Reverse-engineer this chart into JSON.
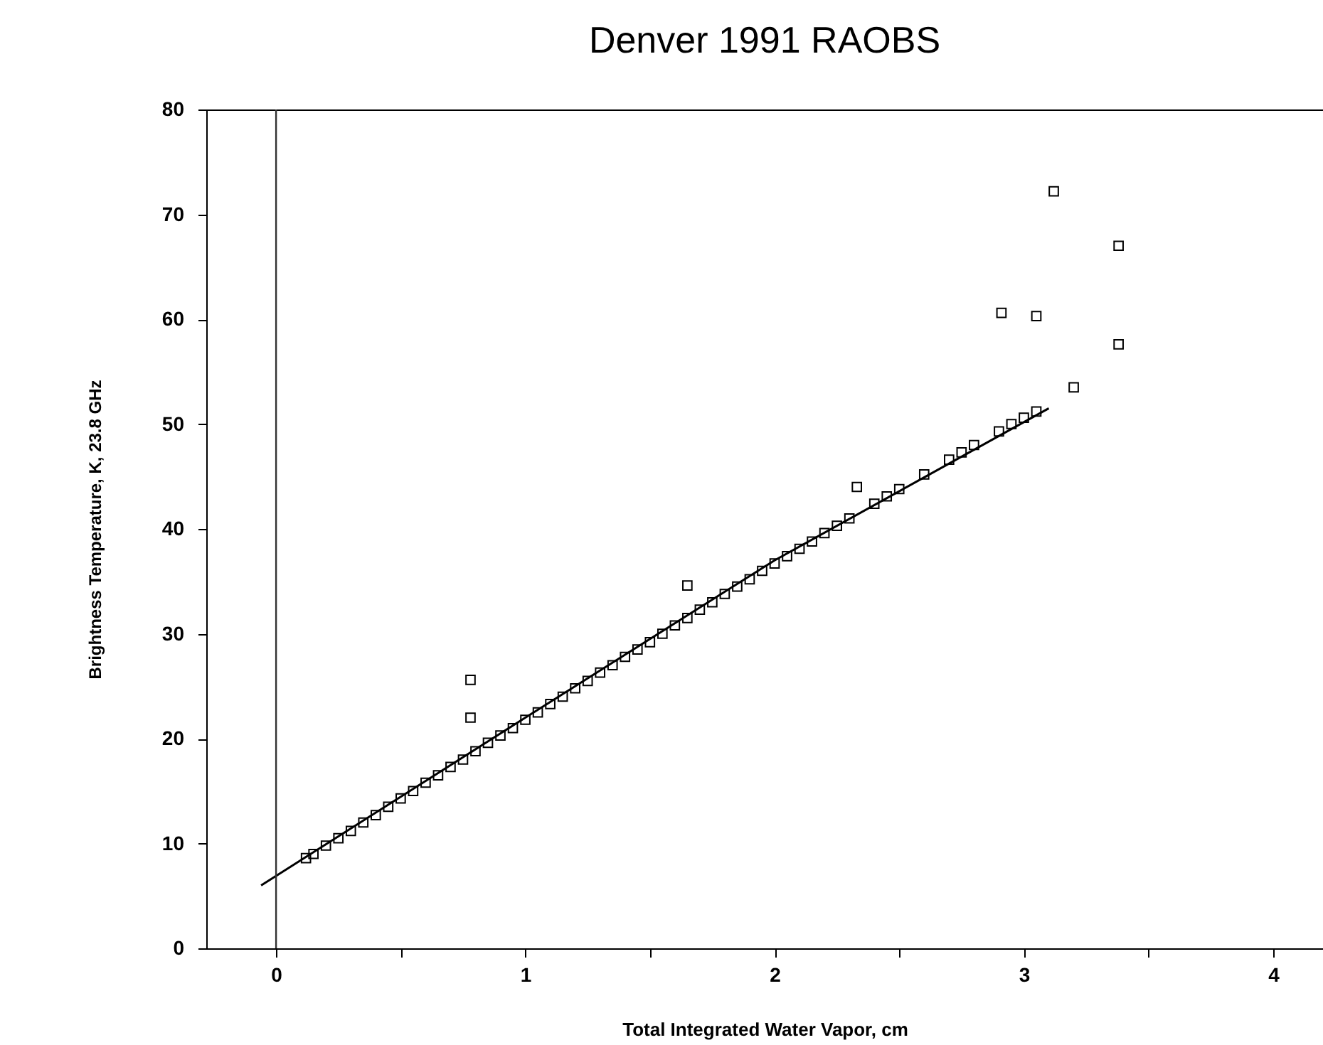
{
  "chart_data": {
    "type": "scatter",
    "title": "Denver 1991 RAOBS",
    "xlabel": "Total Integrated Water Vapor, cm",
    "ylabel": "Brightness Temperature, K, 23.8 GHz",
    "xlim": [
      -0.28,
      4.2
    ],
    "ylim": [
      0,
      80
    ],
    "xticks": [
      0,
      {
        "value": 0.5,
        "label": null
      },
      1,
      {
        "value": 1.5,
        "label": null
      },
      2,
      {
        "value": 2.5,
        "label": null
      },
      3,
      {
        "value": 3.5,
        "label": null
      },
      4
    ],
    "yticks": [
      0,
      10,
      20,
      30,
      40,
      50,
      60,
      70,
      80
    ],
    "grid": false,
    "marker": "square",
    "ref_lines": [
      {
        "axis": "x",
        "value": 0,
        "label": null
      }
    ],
    "series": [
      {
        "color": "#000000",
        "x": [
          0.12,
          0.15,
          0.2,
          0.25,
          0.3,
          0.35,
          0.4,
          0.45,
          0.5,
          0.55,
          0.6,
          0.65,
          0.7,
          0.75,
          0.78,
          0.78,
          0.8,
          0.85,
          0.9,
          0.95,
          1.0,
          1.05,
          1.1,
          1.15,
          1.2,
          1.25,
          1.3,
          1.35,
          1.4,
          1.45,
          1.5,
          1.55,
          1.6,
          1.65,
          1.65,
          1.7,
          1.75,
          1.8,
          1.85,
          1.9,
          1.95,
          2.0,
          2.05,
          2.1,
          2.15,
          2.2,
          2.25,
          2.3,
          2.33,
          2.4,
          2.45,
          2.5,
          2.6,
          2.7,
          2.75,
          2.8,
          2.9,
          2.91,
          2.95,
          3.0,
          3.05,
          3.05,
          3.12,
          3.2,
          3.38,
          3.38
        ],
        "values": [
          8.6,
          9.0,
          9.8,
          10.5,
          11.2,
          12.0,
          12.7,
          13.5,
          14.3,
          15.0,
          15.8,
          16.5,
          17.3,
          18.0,
          25.6,
          22.0,
          18.8,
          19.6,
          20.3,
          21.0,
          21.8,
          22.5,
          23.3,
          24.0,
          24.8,
          25.5,
          26.3,
          27.0,
          27.8,
          28.5,
          29.2,
          30.0,
          30.8,
          31.5,
          34.6,
          32.3,
          33.0,
          33.8,
          34.5,
          35.2,
          36.0,
          36.7,
          37.4,
          38.1,
          38.8,
          39.6,
          40.3,
          41.0,
          44.0,
          42.4,
          43.1,
          43.8,
          45.2,
          46.6,
          47.3,
          48.0,
          49.3,
          60.6,
          50.0,
          50.6,
          51.2,
          60.3,
          72.2,
          53.5,
          67.0,
          57.6
        ]
      },
      {
        "type": "line",
        "color": "#000000",
        "marker": "none",
        "x": [
          -0.06,
          1,
          2,
          3.1
        ],
        "values": [
          6,
          22,
          37,
          51.5
        ]
      }
    ]
  }
}
